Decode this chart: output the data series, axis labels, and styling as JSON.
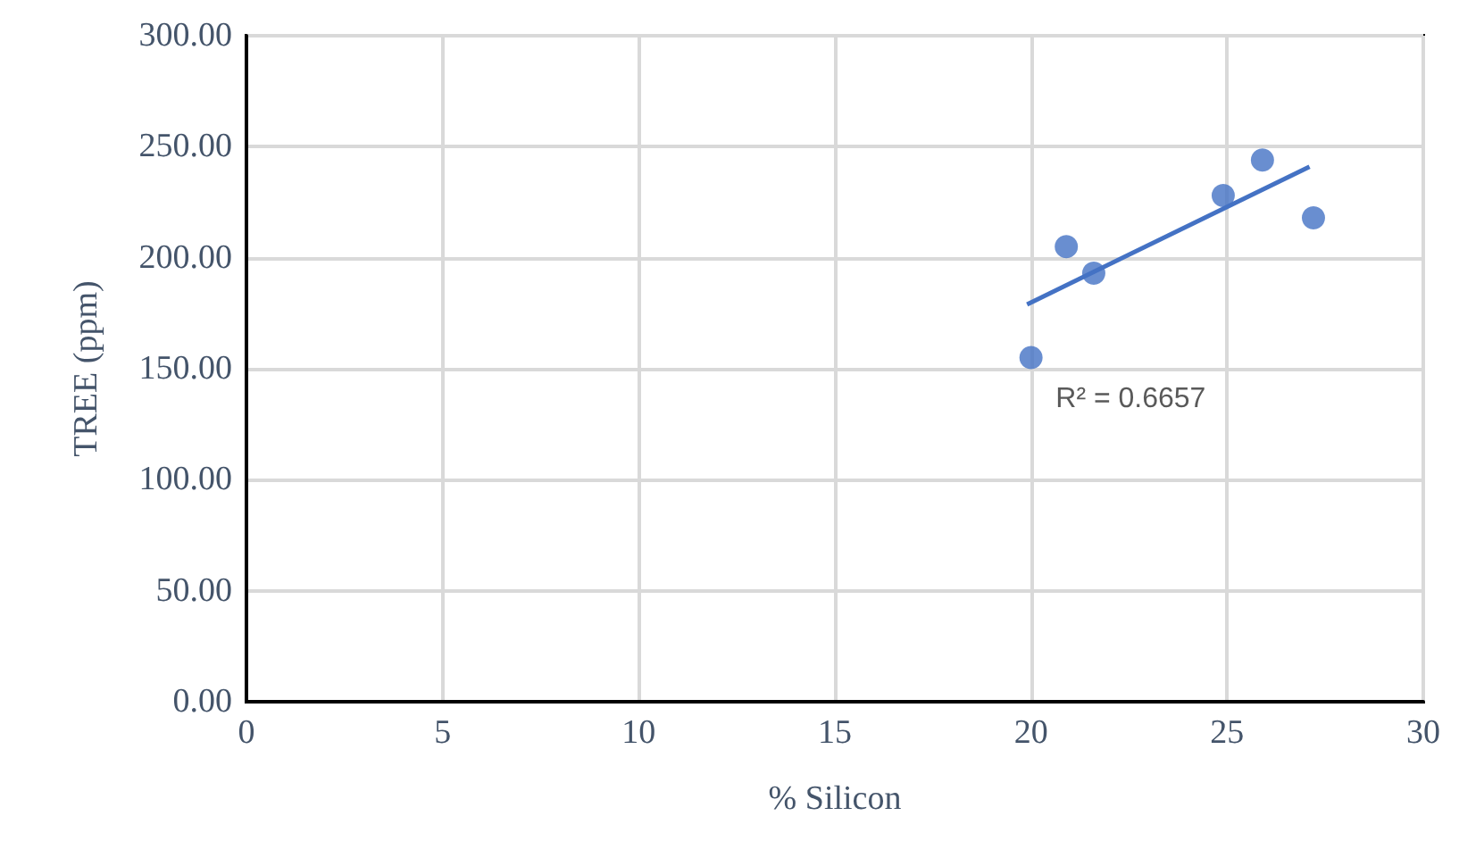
{
  "chart_data": {
    "type": "scatter",
    "xlabel": "% Silicon",
    "ylabel": "TREE (ppm)",
    "series": [
      {
        "color": "#4472c4",
        "x": [
          20.0,
          20.9,
          21.6,
          24.9,
          25.9,
          27.2
        ],
        "values": [
          155,
          205,
          193,
          228,
          244,
          218
        ],
        "marker": "circle"
      },
      {
        "type": "line",
        "color": "#4472c4",
        "x": [
          19.9,
          27.1
        ],
        "values": [
          179,
          241
        ],
        "marker": "none",
        "line_style": "solid"
      }
    ],
    "annotations": [
      "R² = 0.6657"
    ],
    "xlim": [
      0,
      30
    ],
    "xticks": [
      0,
      5,
      10,
      15,
      20,
      25,
      30
    ],
    "ylim": [
      0,
      300
    ],
    "yticks": [
      {
        "value": 0,
        "label": "0.00"
      },
      {
        "value": 50,
        "label": "50.00"
      },
      {
        "value": 100,
        "label": "100.00"
      },
      {
        "value": 150,
        "label": "150.00"
      },
      {
        "value": 200,
        "label": "200.00"
      },
      {
        "value": 250,
        "label": "250.00"
      },
      {
        "value": 300,
        "label": "300.00"
      }
    ],
    "grid": true
  }
}
